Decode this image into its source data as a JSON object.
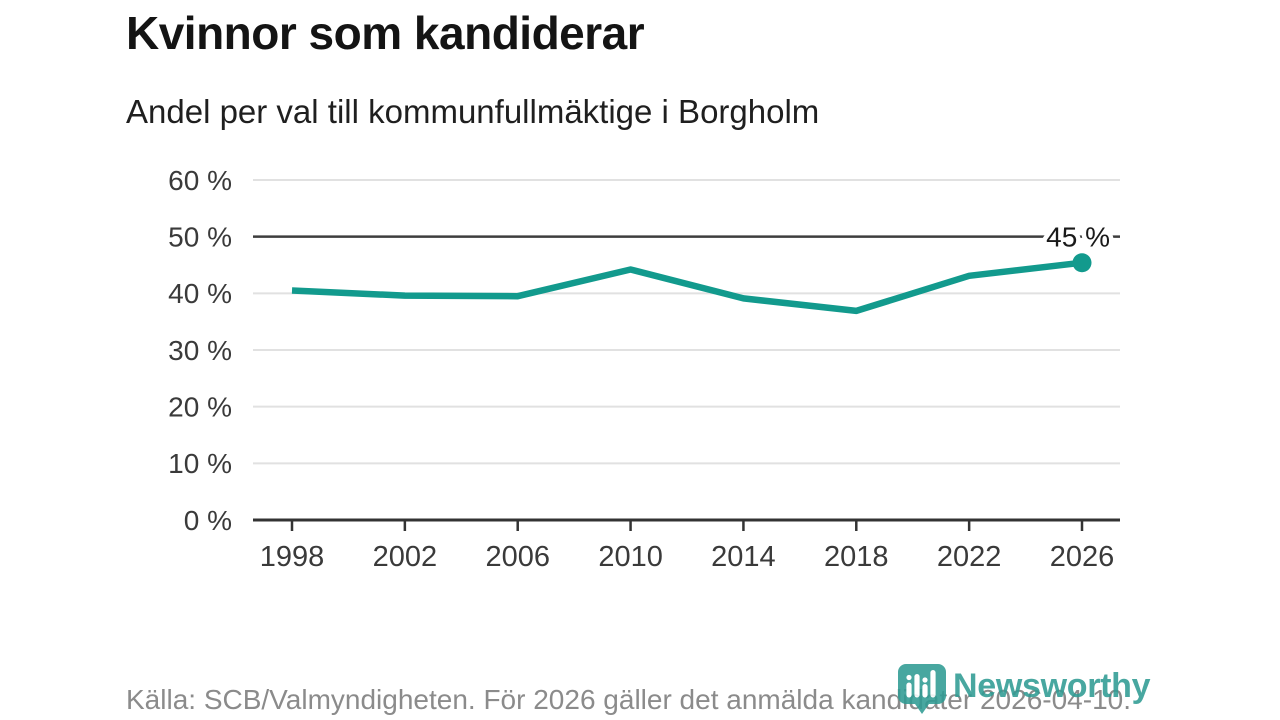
{
  "header": {
    "title": "Kvinnor som kandiderar",
    "subtitle": "Andel per val till kommunfullmäktige i Borgholm"
  },
  "chart_data": {
    "type": "line",
    "title": "Kvinnor som kandiderar",
    "subtitle": "Andel per val till kommunfullmäktige i Borgholm",
    "x": [
      1998,
      2002,
      2006,
      2010,
      2014,
      2018,
      2022,
      2026
    ],
    "values": [
      40.5,
      39.6,
      39.5,
      44.2,
      39.1,
      36.9,
      43.1,
      45.4
    ],
    "ylim": [
      0,
      60
    ],
    "yticks": [
      0,
      10,
      20,
      30,
      40,
      50,
      60
    ],
    "ytick_suffix": " %",
    "grid": true,
    "legend": "none",
    "reference_line_y": 50,
    "end_point_label": "45 %",
    "end_point_marker": true,
    "colors": {
      "line": "#129a8d",
      "marker": "#129a8d",
      "grid": "#e1e1e1",
      "reference_line": "#3d3d3d",
      "axis": "#333333",
      "tick_text": "#3a3a3a",
      "annotation_text": "#1a1a1a"
    }
  },
  "footer": {
    "source": "Källa: SCB/Valmyndigheten. För 2026 gäller det anmälda kandidater 2026-04-10.",
    "brand": "Newsworthy"
  }
}
